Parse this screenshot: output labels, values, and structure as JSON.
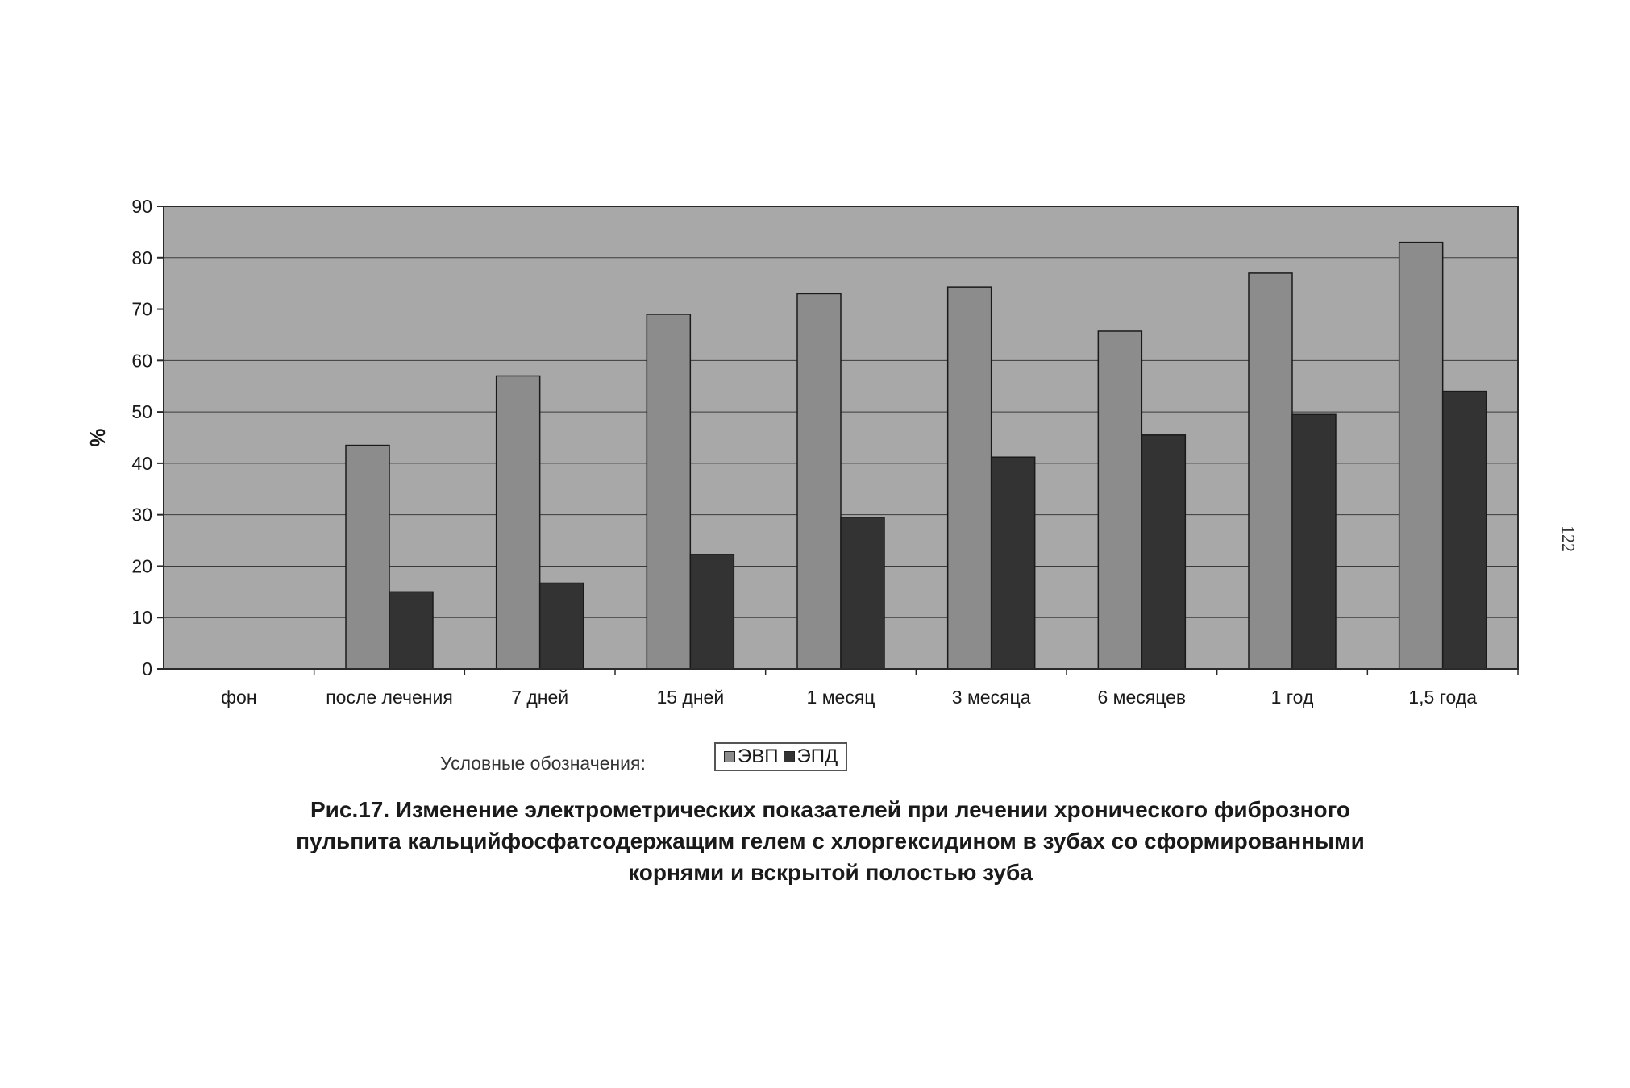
{
  "chart_data": {
    "type": "bar",
    "ylabel": "%",
    "xlabel": "",
    "ylim": [
      0,
      90
    ],
    "yticks": [
      0,
      10,
      20,
      30,
      40,
      50,
      60,
      70,
      80,
      90
    ],
    "grid": true,
    "categories": [
      "фон",
      "после лечения",
      "7 дней",
      "15 дней",
      "1 месяц",
      "3 месяца",
      "6 месяцев",
      "1 год",
      "1,5 года"
    ],
    "series": [
      {
        "name": "ЭВП",
        "color": "#8c8c8c",
        "values": [
          0,
          43.5,
          57,
          69,
          73,
          74.3,
          65.7,
          77,
          83
        ]
      },
      {
        "name": "ЭПД",
        "color": "#333333",
        "values": [
          0,
          15,
          16.7,
          22.3,
          29.5,
          41.2,
          45.5,
          49.5,
          54
        ]
      }
    ],
    "plot_background": "#a8a8a8"
  },
  "legend": {
    "caption": "Условные обозначения:"
  },
  "figure_caption": {
    "line1": "Рис.17. Изменение электрометрических показателей при лечении хронического фиброзного",
    "line2": "пульпита кальцийфосфатсодержащим гелем с хлоргексидином в зубах со сформированными",
    "line3": "корнями и вскрытой полостью зуба"
  },
  "page_number": "122"
}
